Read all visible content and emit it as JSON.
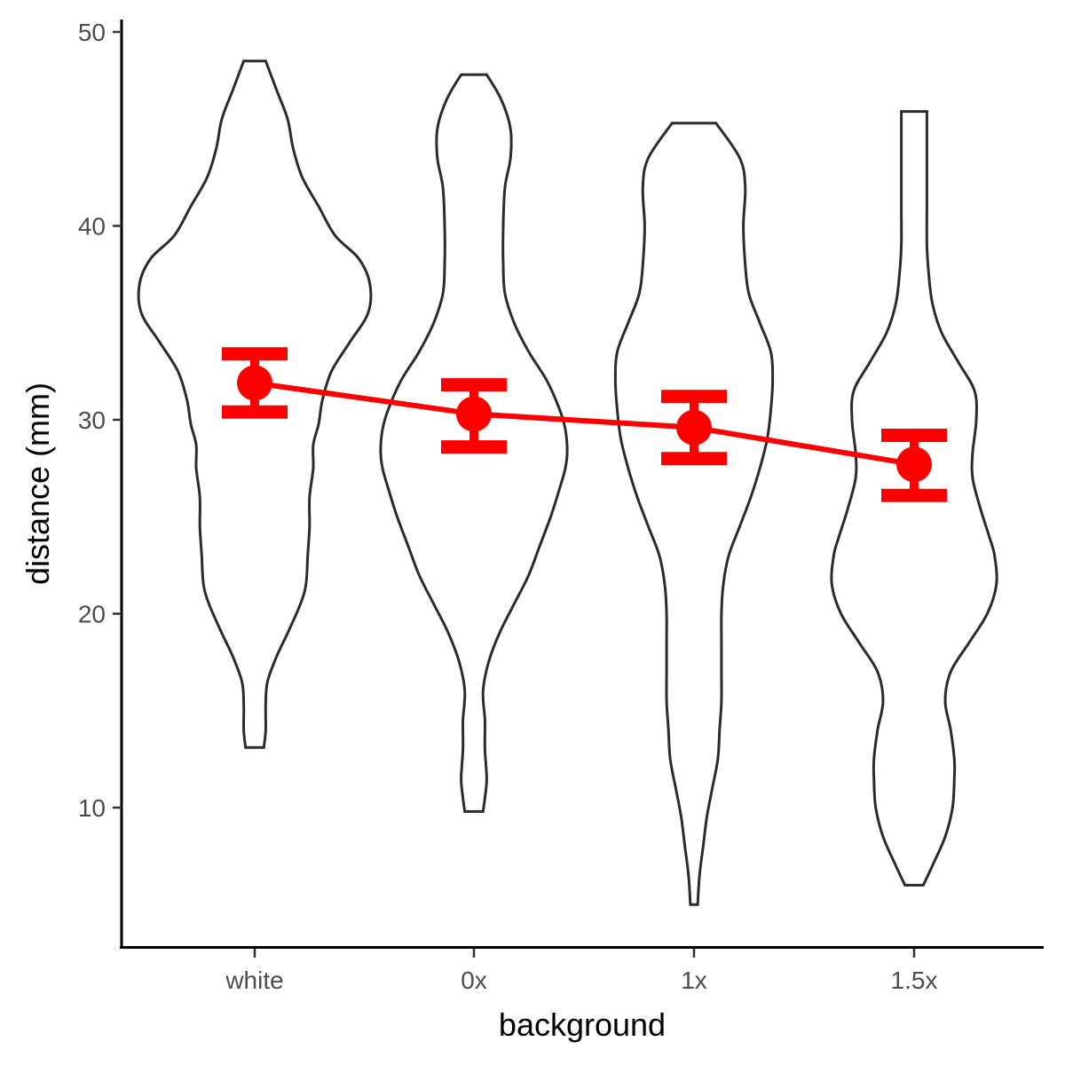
{
  "chart_data": {
    "type": "violin",
    "xlabel": "background",
    "ylabel": "distance (mm)",
    "categories": [
      "white",
      "0x",
      "1x",
      "1.5x"
    ],
    "ylim": [
      3,
      51
    ],
    "yticks": [
      10,
      20,
      30,
      40,
      50
    ],
    "ytick_labels": [
      "10",
      "20",
      "30",
      "40",
      "50"
    ],
    "grid": false,
    "legend": "none",
    "colors": {
      "violin_outline": "#2b2b2b",
      "summary": "#ff0000"
    },
    "summary": {
      "means": [
        31.9,
        30.3,
        29.6,
        27.7
      ],
      "ci_low": [
        30.4,
        28.6,
        28.0,
        26.1
      ],
      "ci_high": [
        33.4,
        31.8,
        31.2,
        29.2
      ]
    },
    "violins": [
      {
        "category": "white",
        "y": [
          13.1,
          14,
          15.4,
          16.5,
          17.8,
          19,
          20.5,
          21.5,
          23,
          24.5,
          26,
          27.5,
          28.7,
          29.8,
          31,
          32.5,
          34,
          35.5,
          37,
          38.3,
          39.5,
          41,
          42.5,
          44,
          45.5,
          47,
          48.5
        ],
        "half_width": [
          0.05,
          0.06,
          0.06,
          0.07,
          0.12,
          0.18,
          0.25,
          0.28,
          0.29,
          0.3,
          0.3,
          0.32,
          0.32,
          0.35,
          0.37,
          0.42,
          0.52,
          0.62,
          0.63,
          0.57,
          0.44,
          0.35,
          0.26,
          0.21,
          0.18,
          0.12,
          0.06
        ]
      },
      {
        "category": "0x",
        "y": [
          9.8,
          10.5,
          11.5,
          13,
          14.5,
          16,
          17.5,
          19,
          20.5,
          22,
          23.5,
          25,
          26.5,
          27.5,
          28.4,
          29.5,
          30.5,
          32,
          33.5,
          35,
          36.5,
          38,
          40,
          42,
          43.5,
          45,
          46.5,
          47.8
        ],
        "half_width": [
          0.05,
          0.06,
          0.07,
          0.06,
          0.06,
          0.05,
          0.08,
          0.14,
          0.22,
          0.3,
          0.36,
          0.42,
          0.47,
          0.5,
          0.51,
          0.5,
          0.47,
          0.4,
          0.3,
          0.22,
          0.17,
          0.16,
          0.16,
          0.17,
          0.2,
          0.2,
          0.15,
          0.07
        ]
      },
      {
        "category": "1x",
        "y": [
          5,
          6.5,
          8,
          9.5,
          11,
          12.5,
          14,
          15.5,
          17,
          18.5,
          20,
          21.5,
          23,
          24.5,
          26,
          27.5,
          29,
          30.5,
          32,
          33.5,
          35,
          36.5,
          38,
          40,
          42,
          43.5,
          45.3
        ],
        "half_width": [
          0.02,
          0.03,
          0.05,
          0.07,
          0.1,
          0.13,
          0.14,
          0.15,
          0.15,
          0.15,
          0.15,
          0.16,
          0.19,
          0.25,
          0.31,
          0.36,
          0.4,
          0.42,
          0.43,
          0.42,
          0.36,
          0.3,
          0.28,
          0.27,
          0.28,
          0.25,
          0.12
        ]
      },
      {
        "category": "1.5x",
        "y": [
          6,
          7,
          8.5,
          10,
          11.5,
          12.5,
          14,
          15.5,
          17,
          18.5,
          20,
          21.5,
          23,
          24,
          25.5,
          27,
          28.3,
          30,
          31.5,
          33,
          34.5,
          36,
          37.5,
          39,
          41,
          43,
          44.5,
          45.9
        ],
        "half_width": [
          0.05,
          0.1,
          0.17,
          0.21,
          0.22,
          0.22,
          0.2,
          0.17,
          0.2,
          0.3,
          0.4,
          0.45,
          0.44,
          0.41,
          0.36,
          0.32,
          0.32,
          0.34,
          0.33,
          0.24,
          0.15,
          0.1,
          0.08,
          0.07,
          0.07,
          0.07,
          0.07,
          0.07
        ]
      }
    ]
  }
}
